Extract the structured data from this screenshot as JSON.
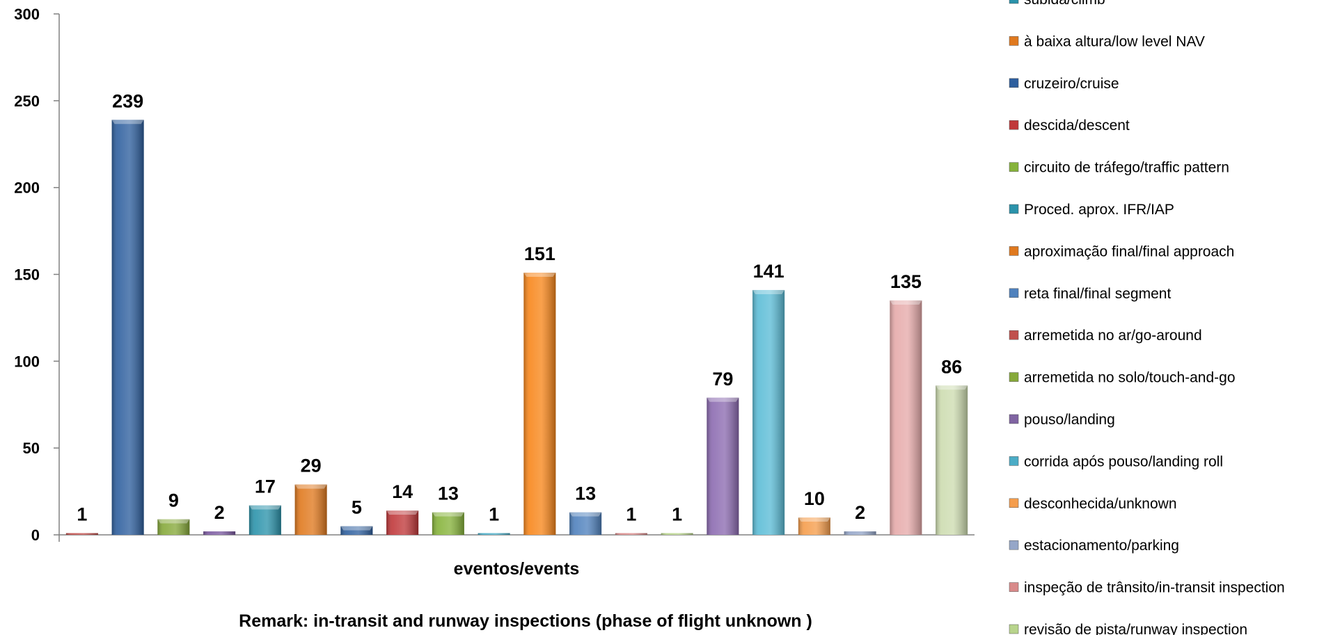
{
  "chart_data": {
    "type": "bar",
    "categories": [
      "subida/climb",
      "cruzeiro/cruise",
      "circuito de tráfego/traffic pattern",
      "pouso/landing",
      "Proced. aprox. IFR/IAP",
      "aproximação final/final approach",
      "cruzeiro/cruise",
      "descida/descent",
      "circuito de tráfego/traffic pattern",
      "corrida após pouso/landing roll",
      "aproximação final/final approach",
      "reta final/final segment",
      "arremetida no ar/go-around",
      "arremetida no solo/touch-and-go",
      "pouso/landing",
      "corrida após pouso/landing roll",
      "desconhecida/unknown",
      "estacionamento/parking",
      "inspeção de trânsito/in-transit inspection",
      "revisão de pista/runway inspection"
    ],
    "values": [
      1,
      239,
      9,
      2,
      17,
      29,
      5,
      14,
      13,
      1,
      151,
      13,
      1,
      1,
      79,
      141,
      10,
      2,
      135,
      86
    ],
    "bar_colors": [
      "#c0504d",
      "#2e5f9e",
      "#86a93a",
      "#7b5aa0",
      "#2b93ab",
      "#e0791e",
      "#2e5f9e",
      "#c0383a",
      "#86b33a",
      "#4bacc6",
      "#f8861a",
      "#4f81bd",
      "#d98a8a",
      "#b8d48c",
      "#8c6bb1",
      "#5bbcd6",
      "#f59d4c",
      "#95a6c8",
      "#e6aaaa",
      "#cddcb0"
    ],
    "title": "",
    "xlabel": "eventos/events",
    "ylabel": "",
    "ylim": [
      0,
      300
    ],
    "yticks": [
      0,
      50,
      100,
      150,
      200,
      250,
      300
    ],
    "remark": "Remark: in-transit and runway inspections (phase of flight unknown )",
    "legend_position": "right",
    "legend": [
      {
        "label": "subida/climb",
        "color": "#2b93ab"
      },
      {
        "label": "à baixa altura/low level NAV",
        "color": "#e0791e"
      },
      {
        "label": "cruzeiro/cruise",
        "color": "#2e5f9e"
      },
      {
        "label": "descida/descent",
        "color": "#c0383a"
      },
      {
        "label": "circuito de tráfego/traffic pattern",
        "color": "#86b33a"
      },
      {
        "label": "Proced. aprox. IFR/IAP",
        "color": "#2b93ab"
      },
      {
        "label": "aproximação final/final approach",
        "color": "#e0791e"
      },
      {
        "label": "reta final/final segment",
        "color": "#4f81bd"
      },
      {
        "label": "arremetida no ar/go-around",
        "color": "#c0504d"
      },
      {
        "label": "arremetida no solo/touch-and-go",
        "color": "#86a93a"
      },
      {
        "label": "pouso/landing",
        "color": "#8064a2"
      },
      {
        "label": "corrida após pouso/landing roll",
        "color": "#4bacc6"
      },
      {
        "label": "desconhecida/unknown",
        "color": "#f59d4c"
      },
      {
        "label": "estacionamento/parking",
        "color": "#95a6c8"
      },
      {
        "label": "inspeção de trânsito/in-transit inspection",
        "color": "#d98a8a"
      },
      {
        "label": "revisão de pista/runway inspection",
        "color": "#b8d48c"
      }
    ],
    "grid": false
  }
}
